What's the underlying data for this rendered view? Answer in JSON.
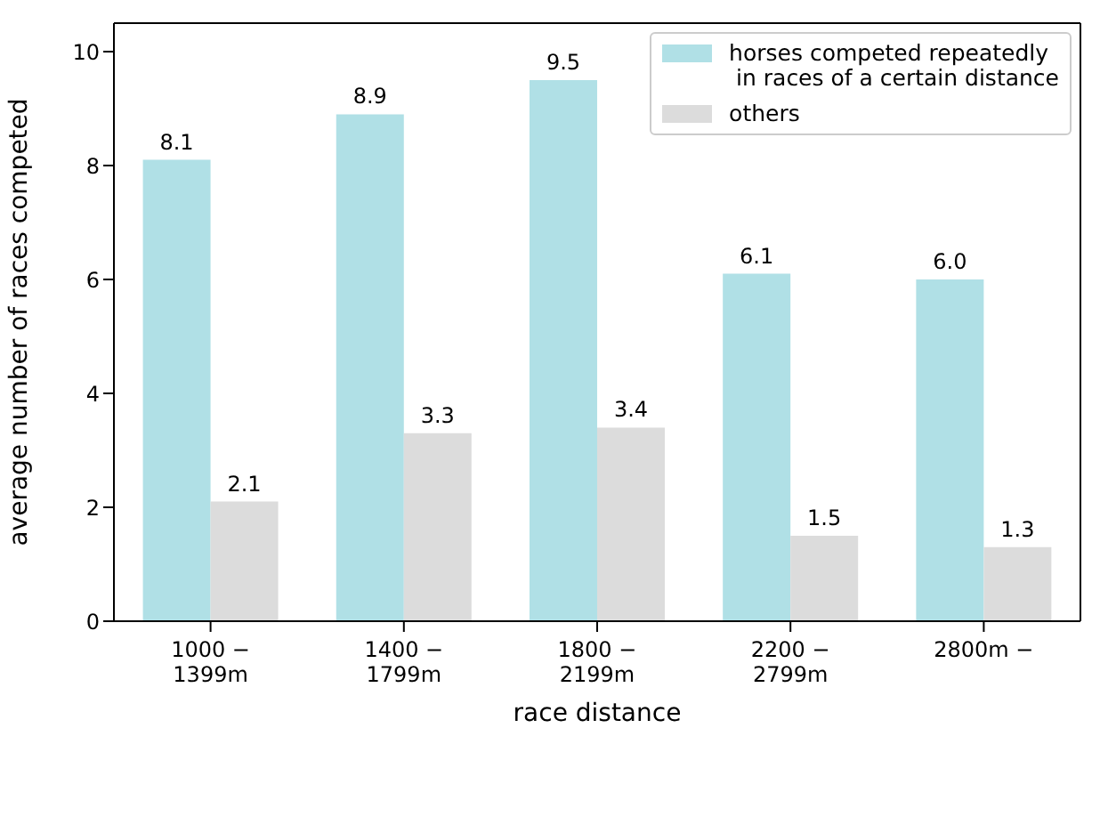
{
  "chart_data": {
    "type": "bar",
    "xlabel": "race distance",
    "ylabel": "average number of races competed",
    "categories": [
      "1000 −\n1399m",
      "1400 −\n1799m",
      "1800 −\n2199m",
      "2200 −\n2799m",
      "2800m −"
    ],
    "series": [
      {
        "name": "horses competed repeatedly\n in races of a certain distance",
        "color": "#b0e0e6",
        "values": [
          8.1,
          8.9,
          9.5,
          6.1,
          6.0
        ],
        "value_labels": [
          "8.1",
          "8.9",
          "9.5",
          "6.1",
          "6.0"
        ]
      },
      {
        "name": "others",
        "color": "#dcdcdc",
        "values": [
          2.1,
          3.3,
          3.4,
          1.5,
          1.3
        ],
        "value_labels": [
          "2.1",
          "3.3",
          "3.4",
          "1.5",
          "1.3"
        ]
      }
    ],
    "ylim": [
      0,
      10.5
    ],
    "yticks": [
      0,
      2,
      4,
      6,
      8,
      10
    ],
    "grid": false,
    "legend": "top right"
  }
}
